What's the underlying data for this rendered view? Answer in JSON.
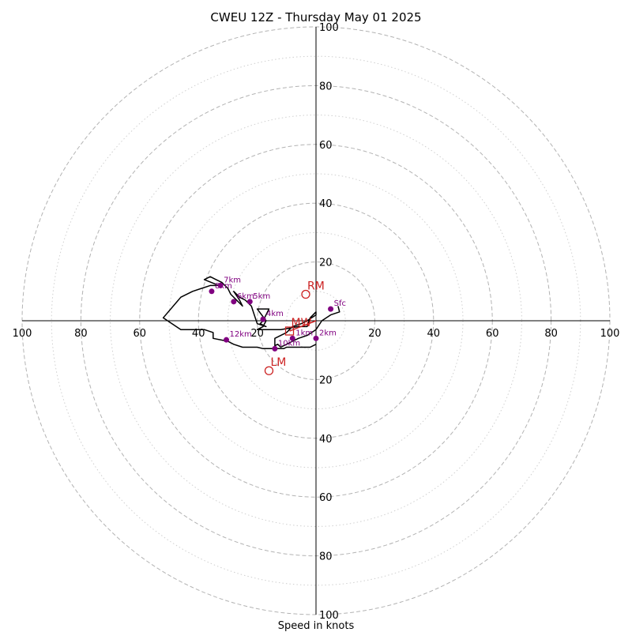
{
  "chart_data": {
    "type": "scatter",
    "title": "CWEU 12Z - Thursday May 01 2025",
    "xlabel": "Speed in knots",
    "ylabel": "",
    "range": [
      -100,
      100
    ],
    "rings_major": [
      20,
      40,
      60,
      80,
      100
    ],
    "rings_minor": [
      10,
      30,
      50,
      70,
      90
    ],
    "tick_labels": {
      "left": [
        "100",
        "80",
        "60",
        "40",
        "20"
      ],
      "right": [
        "20",
        "40",
        "60",
        "80",
        "100"
      ],
      "top": [
        "100",
        "80",
        "60",
        "40",
        "20"
      ],
      "bottom": [
        "20",
        "40",
        "60",
        "80",
        "100"
      ]
    },
    "grid": true,
    "colors": {
      "hodograph_line": "#000000",
      "height_markers": "#800080",
      "storm_motion": "#cc2222",
      "grid": "#b3b3b3"
    },
    "hodograph": {
      "u": [
        7.5,
        8,
        5,
        2,
        0,
        -3,
        -6,
        -8,
        -10,
        -12,
        -13,
        -14,
        -14,
        -12,
        -10,
        -9,
        -8,
        -5,
        -3,
        0,
        0,
        -2,
        -3,
        -6,
        -12,
        -16,
        -20,
        -18,
        -17,
        -20,
        -16,
        -17,
        -18,
        -19,
        -17,
        -20,
        -21,
        -22,
        -23,
        -24,
        -26,
        -27,
        -28,
        -26,
        -25,
        -29,
        -30,
        -32,
        -34,
        -36,
        -38,
        -33,
        -36,
        -42,
        -46,
        -52,
        -49,
        -46,
        -38,
        -35,
        -35,
        -30,
        -28,
        -25,
        -24,
        -20,
        -18,
        -16,
        -14,
        -13,
        -11,
        -10,
        -9,
        -8,
        -6,
        -4,
        -2,
        0
      ],
      "v": [
        5,
        3,
        2,
        0,
        -3,
        -5,
        -6,
        -7,
        -8,
        -9,
        -8,
        -8.5,
        -6,
        -5,
        -4,
        -3,
        -2,
        -1,
        0,
        2,
        3,
        1,
        -2,
        -2,
        -3,
        -3,
        -3,
        -2,
        0,
        4,
        4,
        2,
        0,
        -1,
        -2,
        -1,
        2,
        5,
        6,
        7,
        8,
        9,
        10,
        7,
        5,
        9,
        11,
        13,
        14,
        15,
        14,
        12,
        12,
        10,
        8,
        1,
        -1,
        -3,
        -3,
        -4,
        -6,
        -7,
        -8,
        -9,
        -9,
        -9,
        -9.5,
        -9.5,
        -9.5,
        -9.5,
        -9.5,
        -9,
        -9,
        -9,
        -9,
        -9,
        -9,
        -8
      ]
    },
    "height_markers": [
      {
        "label": "Sfc",
        "u": 5,
        "v": 4
      },
      {
        "label": "2km",
        "u": 0,
        "v": -6
      },
      {
        "label": "1km",
        "u": -8,
        "v": -6
      },
      {
        "label": "10km",
        "u": -14,
        "v": -9.5
      },
      {
        "label": "4km",
        "u": -18,
        "v": 0.5
      },
      {
        "label": "5km",
        "u": -22.5,
        "v": 6.5
      },
      {
        "label": "6km",
        "u": -28,
        "v": 6.5
      },
      {
        "label": "7km",
        "u": -32.5,
        "v": 12
      },
      {
        "label": "8km",
        "u": -35.5,
        "v": 10
      },
      {
        "label": "12km",
        "u": -30.5,
        "v": -6.5
      }
    ],
    "storm_motion": [
      {
        "label": "RM",
        "u": -3.5,
        "v": 9,
        "shape": "circle"
      },
      {
        "label": "MW",
        "u": -9,
        "v": -3.5,
        "shape": "square"
      },
      {
        "label": "LM",
        "u": -16,
        "v": -17,
        "shape": "circle"
      }
    ],
    "shear_vector": {
      "from": {
        "u": -9,
        "v": -3.5
      },
      "to": {
        "u": 0,
        "v": 0
      }
    }
  }
}
